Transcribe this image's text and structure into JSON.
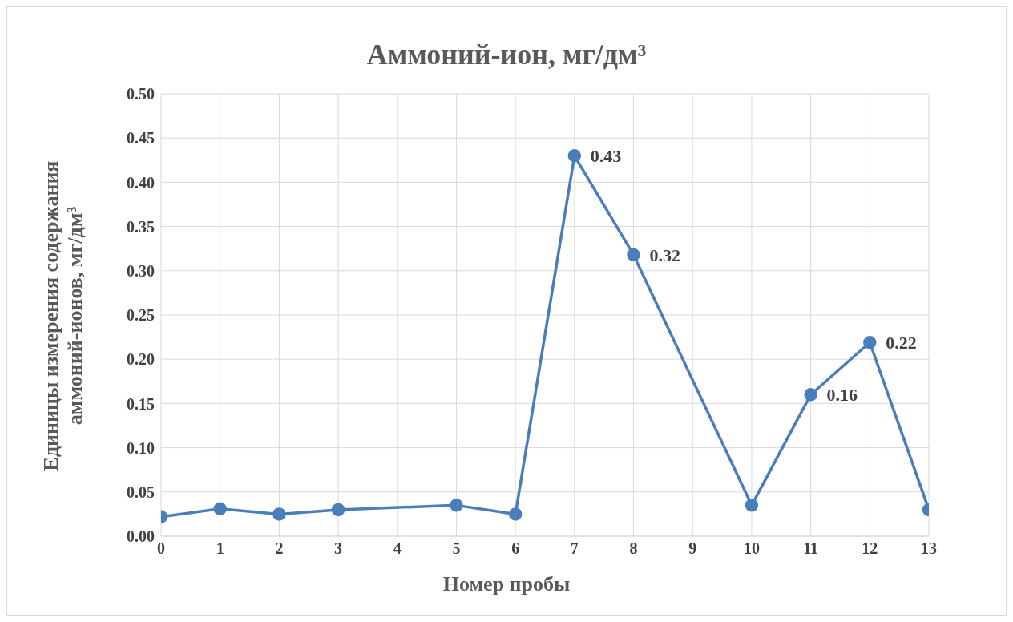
{
  "chart_data": {
    "type": "line",
    "title": "Аммоний-ион, мг/дм³",
    "xlabel": "Номер пробы",
    "ylabel": "Единицы измерения содержания\nаммоний-ионов, мг/дм³",
    "x": [
      0,
      1,
      2,
      3,
      5,
      6,
      7,
      8,
      10,
      11,
      12,
      13
    ],
    "series": [
      {
        "color": "#4a7ebb",
        "values": [
          0.022,
          0.031,
          0.025,
          0.03,
          0.035,
          0.025,
          0.43,
          0.318,
          0.035,
          0.16,
          0.219,
          0.03
        ],
        "value_labels": [
          null,
          null,
          null,
          null,
          null,
          null,
          "0.43",
          "0.32",
          null,
          "0.16",
          "0.22",
          null
        ]
      }
    ],
    "xlim": [
      0,
      13
    ],
    "xticks": [
      0,
      1,
      2,
      3,
      4,
      5,
      6,
      7,
      8,
      9,
      10,
      11,
      12,
      13
    ],
    "ylim": [
      0,
      0.5
    ],
    "yticks": [
      {
        "value": 0,
        "label": "0.00"
      },
      {
        "value": 0.05,
        "label": "0.05"
      },
      {
        "value": 0.1,
        "label": "0.10"
      },
      {
        "value": 0.15,
        "label": "0.15"
      },
      {
        "value": 0.2,
        "label": "0.20"
      },
      {
        "value": 0.25,
        "label": "0.25"
      },
      {
        "value": 0.3,
        "label": "0.30"
      },
      {
        "value": 0.35,
        "label": "0.35"
      },
      {
        "value": 0.4,
        "label": "0.40"
      },
      {
        "value": 0.45,
        "label": "0.45"
      },
      {
        "value": 0.5,
        "label": "0.50"
      }
    ],
    "grid": true,
    "legend": false,
    "marker": "circle",
    "line_style": "solid"
  }
}
